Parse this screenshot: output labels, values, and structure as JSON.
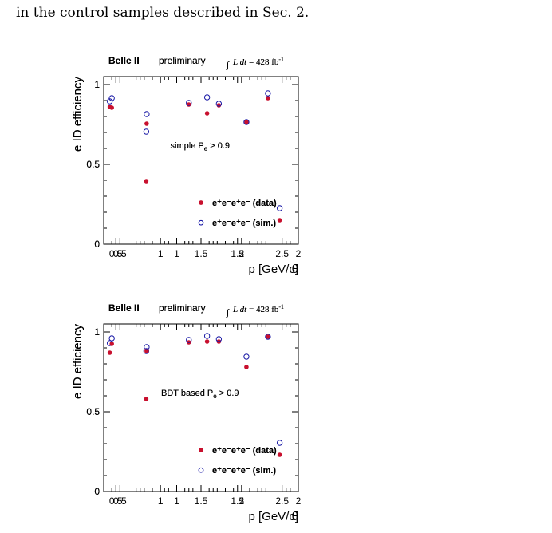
{
  "caption": "in the control samples described in Sec. 2.",
  "colors": {
    "data": "#c8102e",
    "sim": "#1a1aa6",
    "frame": "#000000"
  },
  "chart_data": [
    {
      "type": "scatter",
      "experiment": "Belle II",
      "status": "preliminary",
      "luminosity": {
        "integral": "L dt",
        "eq": " = 428 fb",
        "sup": "-1"
      },
      "selection": {
        "prefix": "simple P",
        "sub": "e",
        "suffix": " > 0.9"
      },
      "xlabel": "p [GeV/c]",
      "ylabel": "e ID efficiency",
      "xlim": [
        0.4,
        2.0
      ],
      "ylim": [
        0,
        1.05
      ],
      "xticks": [
        0.5,
        1,
        1.5,
        2
      ],
      "xticklabels": [
        "0.5",
        "1",
        "1.5",
        "2"
      ],
      "yticks": [
        0,
        0.5,
        1
      ],
      "yticklabels": [
        "0",
        "0.5",
        "1"
      ],
      "series": [
        {
          "name": "e⁺e⁻e⁺e⁻ (data)",
          "style": "filled",
          "x": [
            0.45,
            0.75,
            1.25,
            1.75
          ],
          "y": [
            0.86,
            0.395,
            0.82,
            0.915
          ]
        },
        {
          "name": "e⁺e⁻e⁺e⁻ (sim.)",
          "style": "open",
          "x": [
            0.45,
            0.75,
            1.25,
            1.75
          ],
          "y": [
            0.895,
            0.705,
            0.92,
            0.945
          ]
        }
      ]
    },
    {
      "type": "scatter",
      "experiment": "Belle II",
      "status": "preliminary",
      "luminosity": {
        "integral": "L dt",
        "eq": " = 428 fb",
        "sup": "-1"
      },
      "selection": {
        "prefix": "simple P",
        "sub": "e",
        "suffix": " > 0.9"
      },
      "xlabel": "θ",
      "ylabel": "e ID efficiency",
      "xlim": [
        0.3,
        2.7
      ],
      "ylim": [
        0,
        1.05
      ],
      "xticks": [
        0.5,
        1,
        1.5,
        2,
        2.5
      ],
      "xticklabels": [
        "0.5",
        "1",
        "1.5",
        "2",
        "2.5"
      ],
      "yticks": [
        0,
        0.5,
        1
      ],
      "yticklabels": [
        "0",
        "0.5",
        "1"
      ],
      "series": [
        {
          "name": "e⁺e⁻e⁺e⁻ (data)",
          "style": "filled",
          "x": [
            0.4,
            0.83,
            1.35,
            1.72,
            2.06,
            2.47
          ],
          "y": [
            0.855,
            0.755,
            0.875,
            0.87,
            0.765,
            0.15
          ]
        },
        {
          "name": "e⁺e⁻e⁺e⁻ (sim.)",
          "style": "open",
          "x": [
            0.4,
            0.83,
            1.35,
            1.72,
            2.06,
            2.47
          ],
          "y": [
            0.915,
            0.815,
            0.885,
            0.88,
            0.765,
            0.225
          ]
        }
      ]
    },
    {
      "type": "scatter",
      "experiment": "Belle II",
      "status": "preliminary",
      "luminosity": {
        "integral": "L dt",
        "eq": " = 428 fb",
        "sup": "-1"
      },
      "selection": {
        "prefix": "BDT based P",
        "sub": "e",
        "suffix": " > 0.9"
      },
      "xlabel": "p [GeV/c]",
      "ylabel": "e ID efficiency",
      "xlim": [
        0.4,
        2.0
      ],
      "ylim": [
        0,
        1.05
      ],
      "xticks": [
        0.5,
        1,
        1.5,
        2
      ],
      "xticklabels": [
        "0.5",
        "1",
        "1.5",
        "2"
      ],
      "yticks": [
        0,
        0.5,
        1
      ],
      "yticklabels": [
        "0",
        "0.5",
        "1"
      ],
      "series": [
        {
          "name": "e⁺e⁻e⁺e⁻ (data)",
          "style": "filled",
          "x": [
            0.45,
            0.75,
            1.25,
            1.75
          ],
          "y": [
            0.87,
            0.58,
            0.94,
            0.97
          ]
        },
        {
          "name": "e⁺e⁻e⁺e⁻ (sim.)",
          "style": "open",
          "x": [
            0.45,
            0.75,
            1.25,
            1.75
          ],
          "y": [
            0.93,
            0.88,
            0.975,
            0.97
          ]
        }
      ]
    },
    {
      "type": "scatter",
      "experiment": "Belle II",
      "status": "preliminary",
      "luminosity": {
        "integral": "L dt",
        "eq": " = 428 fb",
        "sup": "-1"
      },
      "selection": {
        "prefix": "BDT based P",
        "sub": "e",
        "suffix": " > 0.9"
      },
      "xlabel": "θ",
      "ylabel": "e ID efficiency",
      "xlim": [
        0.3,
        2.7
      ],
      "ylim": [
        0,
        1.05
      ],
      "xticks": [
        0.5,
        1,
        1.5,
        2,
        2.5
      ],
      "xticklabels": [
        "0.5",
        "1",
        "1.5",
        "2",
        "2.5"
      ],
      "yticks": [
        0,
        0.5,
        1
      ],
      "yticklabels": [
        "0",
        "0.5",
        "1"
      ],
      "series": [
        {
          "name": "e⁺e⁻e⁺e⁻ (data)",
          "style": "filled",
          "x": [
            0.4,
            0.83,
            1.35,
            1.72,
            2.06,
            2.47
          ],
          "y": [
            0.925,
            0.88,
            0.935,
            0.94,
            0.78,
            0.23
          ]
        },
        {
          "name": "e⁺e⁻e⁺e⁻ (sim.)",
          "style": "open",
          "x": [
            0.4,
            0.83,
            1.35,
            1.72,
            2.06,
            2.47
          ],
          "y": [
            0.96,
            0.905,
            0.95,
            0.955,
            0.845,
            0.305
          ]
        }
      ]
    }
  ]
}
